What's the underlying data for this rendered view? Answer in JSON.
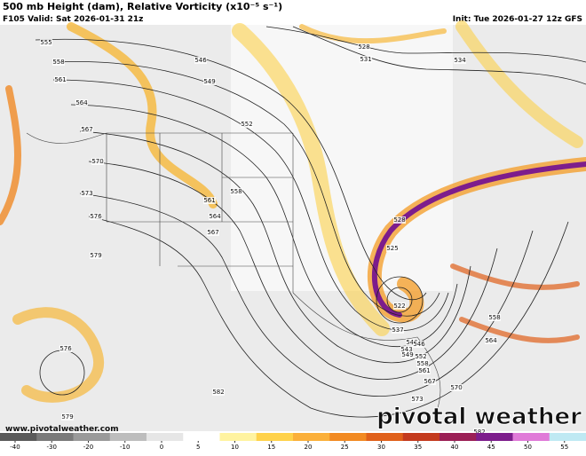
{
  "header": {
    "title": "500 mb Height (dam), Relative Vorticity (x10⁻⁵ s⁻¹)",
    "valid": "F105 Valid: Sat 2026-01-31 21z",
    "init": "Init: Tue 2026-01-27 12z GFS"
  },
  "contour_labels": [
    "555",
    "558",
    "561",
    "564",
    "567",
    "570",
    "573",
    "576",
    "579",
    "546",
    "549",
    "552",
    "558",
    "561",
    "564",
    "567",
    "528",
    "531",
    "534",
    "528",
    "525",
    "522",
    "537",
    "540",
    "543",
    "546",
    "549",
    "552",
    "558",
    "561",
    "567",
    "570",
    "573",
    "576",
    "579",
    "582",
    "582",
    "558",
    "564"
  ],
  "watermark": {
    "url": "www.pivotalweather.com",
    "logo": "pivotal weather"
  },
  "colorbar": {
    "ticks": [
      -40,
      -30,
      -20,
      -10,
      0,
      5,
      10,
      15,
      20,
      25,
      30,
      35,
      40,
      45,
      50,
      55
    ],
    "colors": [
      "#5a5a5a",
      "#7a7a7a",
      "#9a9a9a",
      "#bdbdbd",
      "#e6e6e6",
      "#ffffff",
      "#fff3a0",
      "#ffd24a",
      "#fbb03a",
      "#f28a22",
      "#e0601a",
      "#c43a1e",
      "#9b1f55",
      "#7d1d8c",
      "#e07ad8",
      "#bfe9f3"
    ]
  }
}
